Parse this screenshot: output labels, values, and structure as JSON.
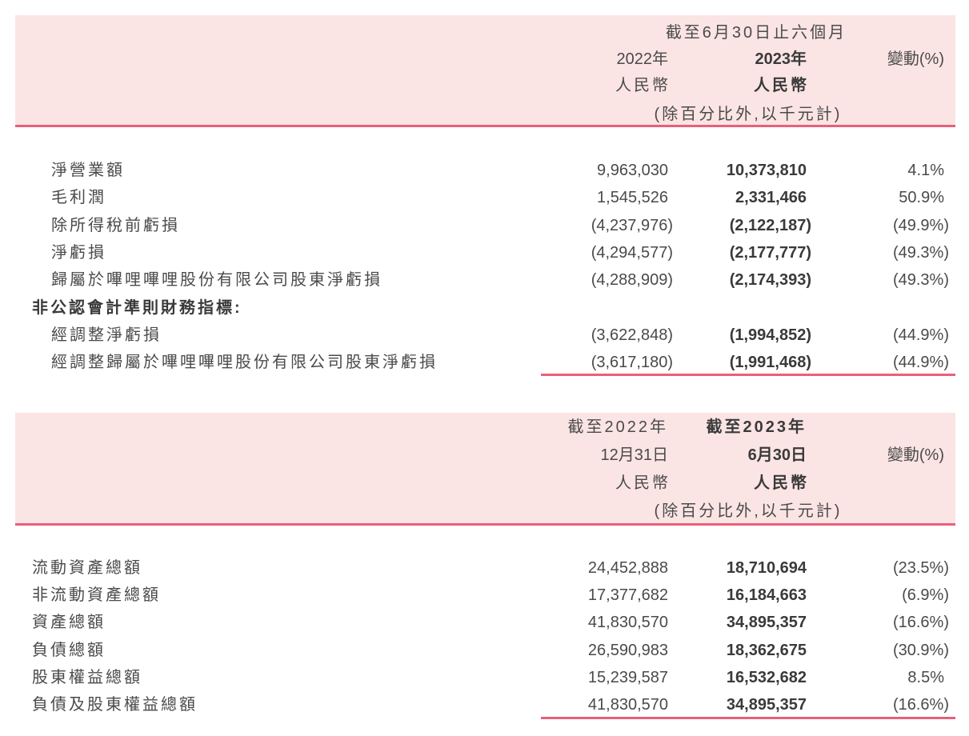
{
  "table1": {
    "header": {
      "period": "截至6月30日止六個月",
      "col1_year": "2022年",
      "col2_year": "2023年",
      "col3": "變動(%)",
      "col1_currency": "人民幣",
      "col2_currency": "人民幣",
      "unit_note": "(除百分比外,以千元計)"
    },
    "rows": [
      {
        "label": "淨營業額",
        "v2022": "9,963,030",
        "v2023": "10,373,810",
        "change": "4.1%",
        "indent": true
      },
      {
        "label": "毛利潤",
        "v2022": "1,545,526",
        "v2023": "2,331,466",
        "change": "50.9%",
        "indent": true
      },
      {
        "label": "除所得稅前虧損",
        "v2022": "(4,237,976)",
        "v2023": "(2,122,187)",
        "change": "(49.9%)",
        "indent": true
      },
      {
        "label": "淨虧損",
        "v2022": "(4,294,577)",
        "v2023": "(2,177,777)",
        "change": "(49.3%)",
        "indent": true
      },
      {
        "label": "歸屬於嗶哩嗶哩股份有限公司股東淨虧損",
        "v2022": "(4,288,909)",
        "v2023": "(2,174,393)",
        "change": "(49.3%)",
        "indent": true
      },
      {
        "label": "非公認會計準則財務指標:",
        "section": true
      },
      {
        "label": "經調整淨虧損",
        "v2022": "(3,622,848)",
        "v2023": "(1,994,852)",
        "change": "(44.9%)",
        "indent": true
      },
      {
        "label": "經調整歸屬於嗶哩嗶哩股份有限公司股東淨虧損",
        "v2022": "(3,617,180)",
        "v2023": "(1,991,468)",
        "change": "(44.9%)",
        "indent": true
      }
    ]
  },
  "table2": {
    "header": {
      "col1_line1": "截至2022年",
      "col2_line1": "截至2023年",
      "col1_line2": "12月31日",
      "col2_line2": "6月30日",
      "col3": "變動(%)",
      "col1_currency": "人民幣",
      "col2_currency": "人民幣",
      "unit_note": "(除百分比外,以千元計)"
    },
    "rows": [
      {
        "label": "流動資產總額",
        "v2022": "24,452,888",
        "v2023": "18,710,694",
        "change": "(23.5%)"
      },
      {
        "label": "非流動資產總額",
        "v2022": "17,377,682",
        "v2023": "16,184,663",
        "change": "(6.9%)"
      },
      {
        "label": "資產總額",
        "v2022": "41,830,570",
        "v2023": "34,895,357",
        "change": "(16.6%)"
      },
      {
        "label": "負債總額",
        "v2022": "26,590,983",
        "v2023": "18,362,675",
        "change": "(30.9%)"
      },
      {
        "label": "股東權益總額",
        "v2022": "15,239,587",
        "v2023": "16,532,682",
        "change": "8.5%"
      },
      {
        "label": "負債及股東權益總額",
        "v2022": "41,830,570",
        "v2023": "34,895,357",
        "change": "(16.6%)"
      }
    ]
  },
  "colors": {
    "band": "#fbe4e4",
    "rule": "#e8607a"
  }
}
